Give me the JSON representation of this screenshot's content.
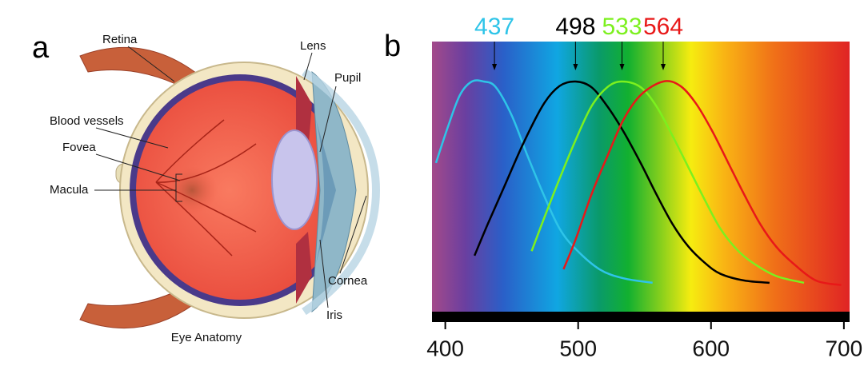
{
  "panel_a": {
    "panel_label": "a",
    "caption": "Eye Anatomy",
    "labels": [
      "Retina",
      "Lens",
      "Pupil",
      "Blood vessels",
      "Fovea",
      "Macula",
      "Cornea",
      "Iris"
    ]
  },
  "chart_data": {
    "type": "line",
    "panel_label": "b",
    "xlim": [
      390,
      704.3
    ],
    "xticks": [
      400,
      500,
      600,
      700
    ],
    "ylim": [
      0,
      1
    ],
    "peaks": [
      437,
      498,
      533,
      564
    ],
    "series": [
      {
        "color": "#2ec4e8",
        "x": [
          393,
          402,
          411,
          420,
          429,
          438,
          450,
          462,
          474,
          486,
          498,
          516,
          534,
          556
        ],
        "values": [
          0.64,
          0.8,
          0.94,
          1.0,
          1.0,
          0.975,
          0.85,
          0.67,
          0.5,
          0.35,
          0.26,
          0.17,
          0.13,
          0.11
        ]
      },
      {
        "color": "#000000",
        "x": [
          422,
          432,
          444,
          459,
          474,
          486,
          498,
          510,
          522,
          534,
          547,
          559,
          571,
          583,
          595,
          607,
          625,
          644
        ],
        "values": [
          0.23,
          0.37,
          0.53,
          0.73,
          0.9,
          0.98,
          1.0,
          0.975,
          0.89,
          0.78,
          0.64,
          0.5,
          0.37,
          0.27,
          0.2,
          0.15,
          0.12,
          0.11
        ]
      },
      {
        "color": "#7cf01e",
        "x": [
          465,
          474,
          486,
          498,
          510,
          522,
          533,
          547,
          559,
          571,
          583,
          595,
          607,
          619,
          631,
          649,
          670
        ],
        "values": [
          0.25,
          0.39,
          0.57,
          0.74,
          0.89,
          0.975,
          1.0,
          0.975,
          0.89,
          0.76,
          0.62,
          0.48,
          0.35,
          0.26,
          0.2,
          0.14,
          0.11
        ]
      },
      {
        "color": "#e81818",
        "x": [
          489,
          498,
          510,
          522,
          534,
          547,
          564,
          577,
          589,
          601,
          613,
          625,
          637,
          649,
          661,
          679,
          698
        ],
        "values": [
          0.17,
          0.3,
          0.5,
          0.67,
          0.83,
          0.94,
          1.0,
          0.98,
          0.9,
          0.78,
          0.64,
          0.5,
          0.37,
          0.27,
          0.2,
          0.12,
          0.1
        ]
      }
    ]
  }
}
